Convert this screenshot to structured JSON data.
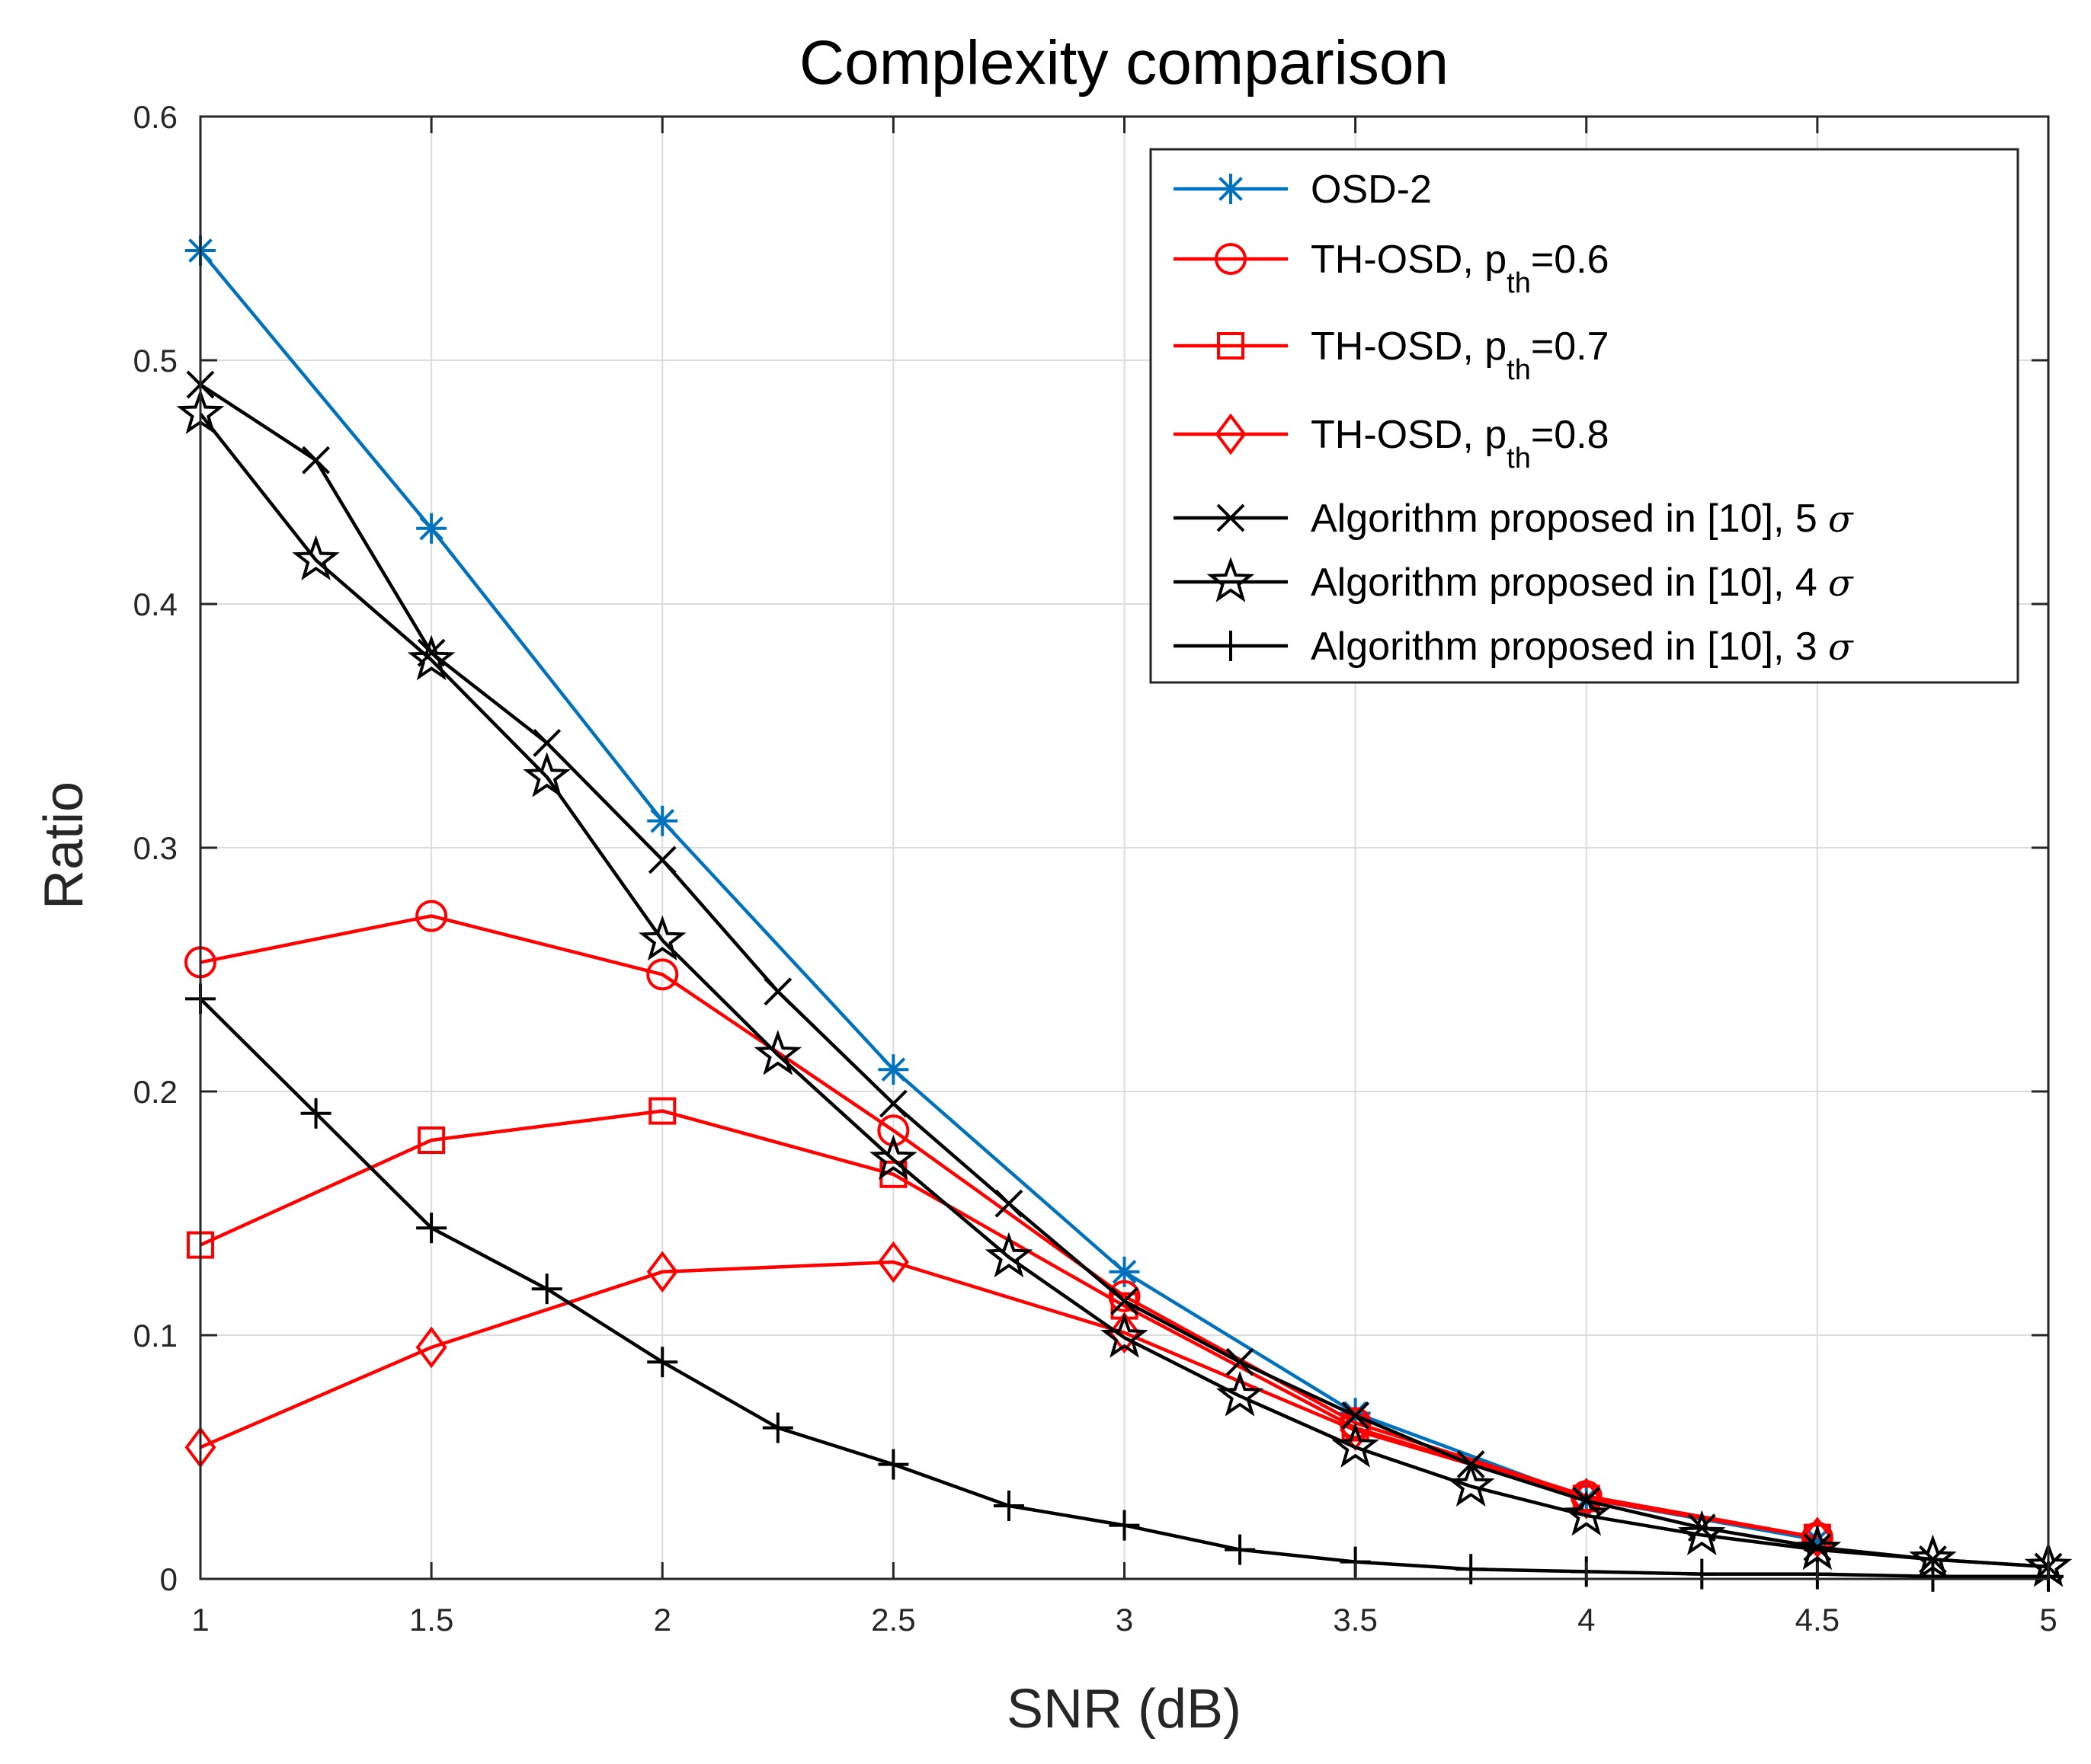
{
  "chart_data": {
    "type": "line",
    "title": "Complexity comparison",
    "xlabel": "SNR (dB)",
    "ylabel": "Ratio",
    "xlim": [
      1,
      5
    ],
    "ylim": [
      0,
      0.6
    ],
    "xticks": [
      1,
      1.5,
      2,
      2.5,
      3,
      3.5,
      4,
      4.5,
      5
    ],
    "yticks": [
      0,
      0.1,
      0.2,
      0.3,
      0.4,
      0.5,
      0.6
    ],
    "xtick_labels": [
      "1",
      "1.5",
      "2",
      "2.5",
      "3",
      "3.5",
      "4",
      "4.5",
      "5"
    ],
    "ytick_labels": [
      "0",
      "0.1",
      "0.2",
      "0.3",
      "0.4",
      "0.5",
      "0.6"
    ],
    "grid": true,
    "legend_position": "top-right",
    "series": [
      {
        "name": "OSD-2",
        "legend": {
          "main": "OSD-2",
          "sub": "",
          "tail": "",
          "sigma": ""
        },
        "color": "#0072BD",
        "marker": "asterisk",
        "x": [
          1,
          1.5,
          2,
          2.5,
          3,
          3.5,
          4,
          4.5
        ],
        "y": [
          0.545,
          0.431,
          0.311,
          0.209,
          0.126,
          0.068,
          0.033,
          0.016
        ]
      },
      {
        "name": "TH-OSD, pth=0.6",
        "legend": {
          "main": "TH-OSD, p",
          "sub": "th",
          "tail": "=0.6",
          "sigma": ""
        },
        "color": "#FF0000",
        "marker": "circle",
        "x": [
          1,
          1.5,
          2,
          2.5,
          3,
          3.5,
          4,
          4.5
        ],
        "y": [
          0.253,
          0.272,
          0.248,
          0.184,
          0.116,
          0.064,
          0.034,
          0.017
        ]
      },
      {
        "name": "TH-OSD, pth=0.7",
        "legend": {
          "main": "TH-OSD, p",
          "sub": "th",
          "tail": "=0.7",
          "sigma": ""
        },
        "color": "#FF0000",
        "marker": "square",
        "x": [
          1,
          1.5,
          2,
          2.5,
          3,
          3.5,
          4,
          4.5
        ],
        "y": [
          0.137,
          0.18,
          0.192,
          0.166,
          0.112,
          0.062,
          0.033,
          0.017
        ]
      },
      {
        "name": "TH-OSD, pth=0.8",
        "legend": {
          "main": "TH-OSD, p",
          "sub": "th",
          "tail": "=0.8",
          "sigma": ""
        },
        "color": "#FF0000",
        "marker": "diamond",
        "x": [
          1,
          1.5,
          2,
          2.5,
          3,
          3.5,
          4,
          4.5
        ],
        "y": [
          0.054,
          0.095,
          0.126,
          0.13,
          0.101,
          0.061,
          0.033,
          0.017
        ]
      },
      {
        "name": "Algorithm proposed in [10], 5 σ",
        "legend": {
          "main": "Algorithm proposed in [10], 5",
          "sub": "",
          "tail": "",
          "sigma": "σ"
        },
        "color": "#000000",
        "marker": "x",
        "x": [
          1,
          1.25,
          1.5,
          1.75,
          2,
          2.25,
          2.5,
          2.75,
          3,
          3.25,
          3.5,
          3.75,
          4,
          4.25,
          4.5,
          4.75,
          5
        ],
        "y": [
          0.49,
          0.459,
          0.38,
          0.343,
          0.295,
          0.241,
          0.195,
          0.154,
          0.114,
          0.089,
          0.067,
          0.047,
          0.032,
          0.021,
          0.013,
          0.008,
          0.005
        ]
      },
      {
        "name": "Algorithm proposed in [10], 4 σ",
        "legend": {
          "main": "Algorithm proposed in [10], 4",
          "sub": "",
          "tail": "",
          "sigma": "σ"
        },
        "color": "#000000",
        "marker": "pentagram",
        "x": [
          1,
          1.25,
          1.5,
          1.75,
          2,
          2.25,
          2.5,
          2.75,
          3,
          3.25,
          3.5,
          3.75,
          4,
          4.25,
          4.5,
          4.75,
          5
        ],
        "y": [
          0.478,
          0.418,
          0.377,
          0.329,
          0.262,
          0.215,
          0.172,
          0.132,
          0.099,
          0.075,
          0.054,
          0.038,
          0.026,
          0.018,
          0.012,
          0.008,
          0.005
        ]
      },
      {
        "name": "Algorithm proposed in [10], 3 σ",
        "legend": {
          "main": "Algorithm proposed in [10], 3",
          "sub": "",
          "tail": "",
          "sigma": "σ"
        },
        "color": "#000000",
        "marker": "plus",
        "x": [
          1,
          1.25,
          1.5,
          1.75,
          2,
          2.25,
          2.5,
          2.75,
          3,
          3.25,
          3.5,
          3.75,
          4,
          4.25,
          4.5,
          4.75,
          5
        ],
        "y": [
          0.238,
          0.191,
          0.144,
          0.119,
          0.089,
          0.062,
          0.047,
          0.03,
          0.022,
          0.012,
          0.007,
          0.004,
          0.003,
          0.002,
          0.002,
          0.001,
          0.001
        ]
      }
    ]
  }
}
